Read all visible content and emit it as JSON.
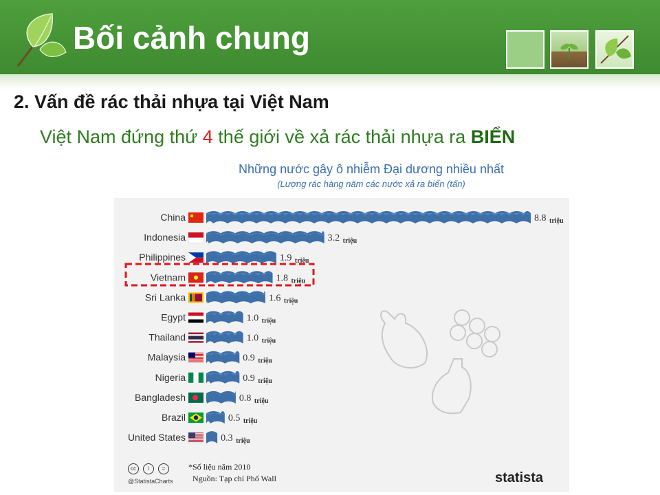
{
  "slide": {
    "title": "Bối cảnh chung",
    "subheading": "2. Vấn đề rác thải nhựa tại Việt Nam",
    "lead_before": "Việt Nam đứng thứ ",
    "lead_number": "4",
    "lead_middle": " thế giới về xả rác thải nhựa ra ",
    "lead_strong": "BIỂN"
  },
  "colors": {
    "header": "#4e9f3d",
    "wave": "#3d6fa8",
    "highlight_box": "#e0161b",
    "lead_text": "#2e7d1f"
  },
  "chart_data": {
    "type": "bar",
    "title": "Những nước gây ô nhiễm Đại dương nhiều nhất",
    "subtitle": "(Lượng rác hàng năm các nước xả ra biển (tấn)",
    "categories": [
      "China",
      "Indonesia",
      "Philippines",
      "Vietnam",
      "Sri Lanka",
      "Egypt",
      "Thailand",
      "Malaysia",
      "Nigeria",
      "Bangladesh",
      "Brazil",
      "United States"
    ],
    "values": [
      8.8,
      3.2,
      1.9,
      1.8,
      1.6,
      1.0,
      1.0,
      0.9,
      0.9,
      0.8,
      0.5,
      0.3
    ],
    "value_labels": [
      "8.8",
      "3.2",
      "1.9",
      "1.8",
      "1.6",
      "1.0",
      "1.0",
      "0.9",
      "0.9",
      "0.8",
      "0.5",
      "0.3"
    ],
    "unit": "triệu",
    "highlighted": "Vietnam",
    "xlim": [
      0,
      8.8
    ],
    "grid": false,
    "footnote": "*Số liệu năm 2010",
    "source": "Nguồn: Tạp chí Phố Wall",
    "handle": "@StatistaCharts",
    "brand": "statista"
  }
}
